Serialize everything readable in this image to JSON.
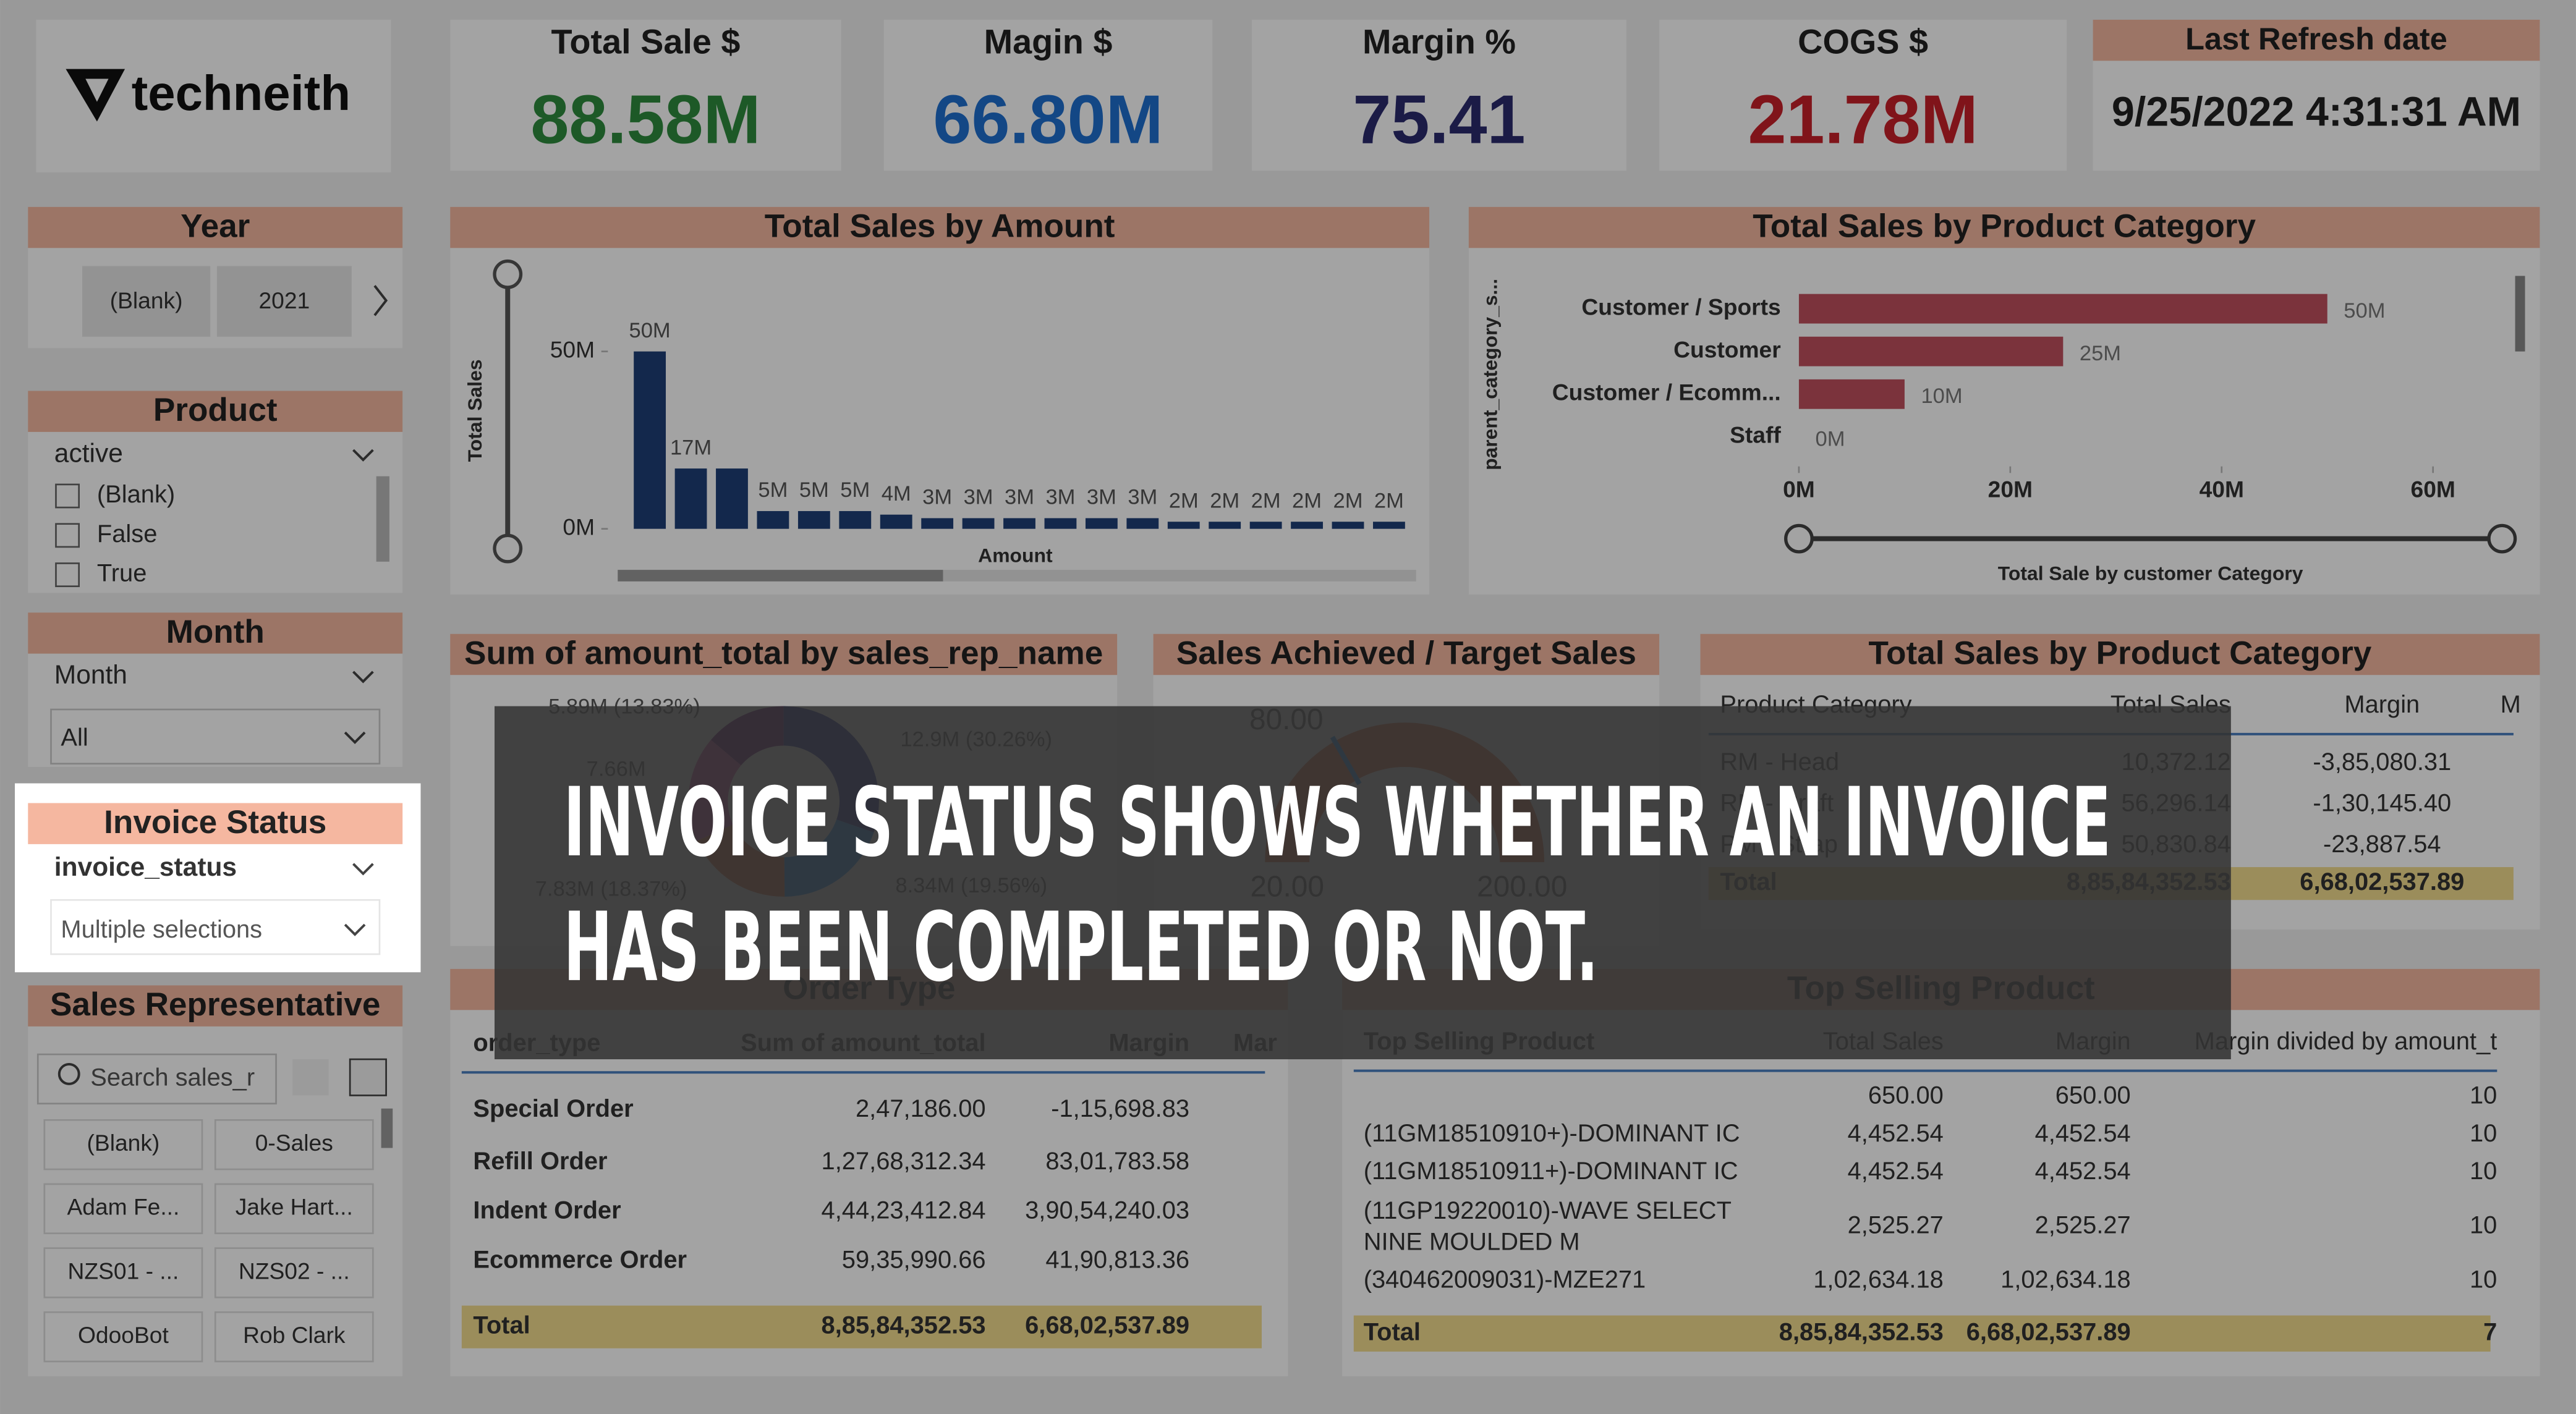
{
  "logo": "techneith",
  "kpis": [
    {
      "title": "Total Sale $",
      "value": "88.58M",
      "color": "#2e8b3e"
    },
    {
      "title": "Magin $",
      "value": "66.80M",
      "color": "#1f6fd0"
    },
    {
      "title": "Margin %",
      "value": "75.41",
      "color": "#2b2b6e"
    },
    {
      "title": "COGS $",
      "value": "21.78M",
      "color": "#c8202a"
    }
  ],
  "last_refresh": {
    "title": "Last Refresh date",
    "value": "9/25/2022 4:31:31 AM"
  },
  "year_slicer": {
    "title": "Year",
    "options": [
      "(Blank)",
      "2021"
    ]
  },
  "product_slicer": {
    "title": "Product",
    "field": "active",
    "options": [
      "(Blank)",
      "False",
      "True"
    ]
  },
  "month_slicer": {
    "title": "Month",
    "field": "Month",
    "selection": "All"
  },
  "invoice_slicer": {
    "title": "Invoice Status",
    "field": "invoice_status",
    "selection": "Multiple selections"
  },
  "sales_rep_slicer": {
    "title": "Sales Representative",
    "search": "Search sales_r",
    "options": [
      "(Blank)",
      "0-Sales",
      "Adam Fe...",
      "Jake Hart...",
      "NZS01 - ...",
      "NZS02 - ...",
      "OdooBot",
      "Rob Clark"
    ]
  },
  "chart_data": [
    {
      "type": "bar",
      "title": "Total Sales by Amount",
      "y_label": "Total Sales",
      "x_label": "Amount",
      "ylim": [
        0,
        50
      ],
      "yticks": [
        {
          "value": 0,
          "label": "0M"
        },
        {
          "value": 50,
          "label": "50M"
        }
      ],
      "values": [
        50,
        17,
        17,
        5,
        5,
        5,
        4,
        3,
        3,
        3,
        3,
        3,
        3,
        2,
        2,
        2,
        2,
        2,
        2
      ],
      "value_labels": [
        "50M",
        "17M",
        null,
        "5M",
        "5M",
        "5M",
        "4M",
        "3M",
        "3M",
        "3M",
        "3M",
        "3M",
        "3M",
        "2M",
        "2M",
        "2M",
        "2M",
        "2M",
        "2M"
      ],
      "color": "#1f3f77"
    },
    {
      "type": "hbar",
      "title": "Total Sales by Product Category",
      "y_label": "parent_category_s...",
      "x_label": "Total Sale by customer Category",
      "categories": [
        "Customer / Sports",
        "Customer",
        "Customer / Ecomm...",
        "Staff"
      ],
      "values": [
        50,
        25,
        10,
        0
      ],
      "value_labels": [
        "50M",
        "25M",
        "10M",
        "0M"
      ],
      "xlim": [
        0,
        60
      ],
      "xticks": [
        {
          "value": 0,
          "label": "0M"
        },
        {
          "value": 20,
          "label": "20M"
        },
        {
          "value": 40,
          "label": "40M"
        },
        {
          "value": 60,
          "label": "60M"
        }
      ],
      "color": "#c0505e"
    },
    {
      "type": "donut",
      "title": "Sum of amount_total by sales_rep_name",
      "values": [
        5.89,
        12.9,
        8.34,
        7.83,
        7.66
      ],
      "value_labels": [
        "5.89M (13.83%)",
        "12.9M (30.26%)",
        "8.34M (19.56%)",
        "7.83M (18.37%)",
        "7.66M"
      ],
      "colors": [
        "#6b007b",
        "#12239e",
        "#118dff",
        "#e66c37",
        "#e044a7"
      ]
    },
    {
      "type": "gauge",
      "title": "Sales Achieved / Target Sales",
      "min": {
        "value": 20,
        "label": "20.00"
      },
      "max": {
        "value": 200,
        "label": "200.00"
      },
      "target": {
        "value": 80,
        "label": "80.00"
      },
      "color": "#e66c37"
    }
  ],
  "tables": {
    "product_category": {
      "title": "Total Sales by Product Category",
      "columns": [
        "Product Category",
        "Total Sales",
        "Margin",
        "M"
      ],
      "rows": [
        [
          "RM - Head",
          "10,372.12",
          "-3,85,080.31"
        ],
        [
          "RM - Craft",
          "56,296.14",
          "-1,30,145.40"
        ],
        [
          "PM - Strap",
          "50,830.84",
          "-23,887.54"
        ]
      ],
      "total": [
        "Total",
        "8,85,84,352.53",
        "6,68,02,537.89"
      ]
    },
    "order_type": {
      "title": "Order Type",
      "columns": [
        "order_type",
        "Sum of amount_total",
        "Margin",
        "Mar"
      ],
      "rows": [
        [
          "Special Order",
          "2,47,186.00",
          "-1,15,698.83"
        ],
        [
          "Refill Order",
          "1,27,68,312.34",
          "83,01,783.58"
        ],
        [
          "Indent Order",
          "4,44,23,412.84",
          "3,90,54,240.03"
        ],
        [
          "Ecommerce Order",
          "59,35,990.66",
          "41,90,813.36"
        ]
      ],
      "total": [
        "Total",
        "8,85,84,352.53",
        "6,68,02,537.89"
      ]
    },
    "top_selling": {
      "title": "Top Selling Product",
      "columns": [
        "Top Selling Product",
        "Total Sales",
        "Margin",
        "Margin divided by amount_t"
      ],
      "rows": [
        [
          null,
          "650.00",
          "650.00",
          "10"
        ],
        [
          "(11GM18510910+)-DOMINANT IC",
          "4,452.54",
          "4,452.54",
          "10"
        ],
        [
          "(11GM18510911+)-DOMINANT IC",
          "4,452.54",
          "4,452.54",
          "10"
        ],
        [
          "(11GP19220010)-WAVE SELECT NINE MOULDED M",
          "2,525.27",
          "2,525.27",
          "10"
        ],
        [
          "(340462009031)-MZE271",
          "1,02,634.18",
          "1,02,634.18",
          "10"
        ]
      ],
      "total": [
        "Total",
        "8,85,84,352.53",
        "6,68,02,537.89",
        "7"
      ]
    }
  },
  "caption": [
    "INVOICE STATUS SHOWS WHETHER AN INVOICE",
    "HAS BEEN COMPLETED OR NOT."
  ]
}
